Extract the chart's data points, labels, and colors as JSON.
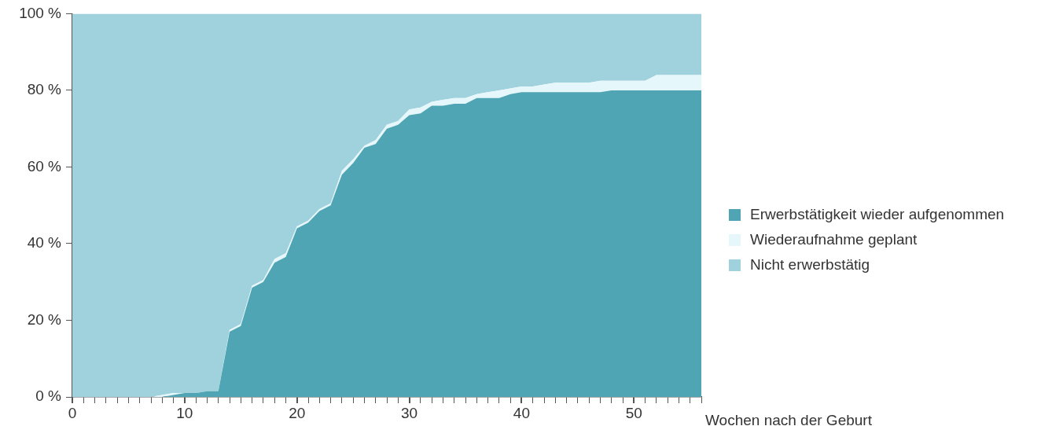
{
  "chart_data": {
    "type": "area",
    "xlabel": "Wochen nach der Geburt",
    "stacked": true,
    "legend": "right",
    "marker": "none",
    "x": [
      0,
      1,
      2,
      3,
      4,
      5,
      6,
      7,
      8,
      9,
      10,
      11,
      12,
      13,
      14,
      15,
      16,
      17,
      18,
      19,
      20,
      21,
      22,
      23,
      24,
      25,
      26,
      27,
      28,
      29,
      30,
      31,
      32,
      33,
      34,
      35,
      36,
      37,
      38,
      39,
      40,
      41,
      42,
      43,
      44,
      45,
      46,
      47,
      48,
      49,
      50,
      51,
      52,
      53,
      54,
      55,
      56
    ],
    "xlim": [
      0,
      56
    ],
    "xticks": [
      0,
      {
        "value": 1,
        "label": null
      },
      {
        "value": 2,
        "label": null
      },
      {
        "value": 3,
        "label": null
      },
      {
        "value": 4,
        "label": null
      },
      {
        "value": 5,
        "label": null
      },
      {
        "value": 6,
        "label": null
      },
      {
        "value": 7,
        "label": null
      },
      {
        "value": 8,
        "label": null
      },
      {
        "value": 9,
        "label": null
      },
      10,
      {
        "value": 11,
        "label": null
      },
      {
        "value": 12,
        "label": null
      },
      {
        "value": 13,
        "label": null
      },
      {
        "value": 14,
        "label": null
      },
      {
        "value": 15,
        "label": null
      },
      {
        "value": 16,
        "label": null
      },
      {
        "value": 17,
        "label": null
      },
      {
        "value": 18,
        "label": null
      },
      {
        "value": 19,
        "label": null
      },
      20,
      {
        "value": 21,
        "label": null
      },
      {
        "value": 22,
        "label": null
      },
      {
        "value": 23,
        "label": null
      },
      {
        "value": 24,
        "label": null
      },
      {
        "value": 25,
        "label": null
      },
      {
        "value": 26,
        "label": null
      },
      {
        "value": 27,
        "label": null
      },
      {
        "value": 28,
        "label": null
      },
      {
        "value": 29,
        "label": null
      },
      30,
      {
        "value": 31,
        "label": null
      },
      {
        "value": 32,
        "label": null
      },
      {
        "value": 33,
        "label": null
      },
      {
        "value": 34,
        "label": null
      },
      {
        "value": 35,
        "label": null
      },
      {
        "value": 36,
        "label": null
      },
      {
        "value": 37,
        "label": null
      },
      {
        "value": 38,
        "label": null
      },
      {
        "value": 39,
        "label": null
      },
      40,
      {
        "value": 41,
        "label": null
      },
      {
        "value": 42,
        "label": null
      },
      {
        "value": 43,
        "label": null
      },
      {
        "value": 44,
        "label": null
      },
      {
        "value": 45,
        "label": null
      },
      {
        "value": 46,
        "label": null
      },
      {
        "value": 47,
        "label": null
      },
      {
        "value": 48,
        "label": null
      },
      {
        "value": 49,
        "label": null
      },
      50,
      {
        "value": 51,
        "label": null
      },
      {
        "value": 52,
        "label": null
      },
      {
        "value": 53,
        "label": null
      },
      {
        "value": 54,
        "label": null
      },
      {
        "value": 55,
        "label": null
      },
      {
        "value": 56,
        "label": null
      }
    ],
    "ylim": [
      0,
      100
    ],
    "yticks": [
      {
        "value": 0,
        "label": "0 %"
      },
      {
        "value": 20,
        "label": "20 %"
      },
      {
        "value": 40,
        "label": "40 %"
      },
      {
        "value": 60,
        "label": "60 %"
      },
      {
        "value": 80,
        "label": "80 %"
      },
      {
        "value": 100,
        "label": "100 %"
      }
    ],
    "series": [
      {
        "name": "Erwerbstätigkeit wieder aufgenommen",
        "color": "#4fa5b4",
        "values": [
          0,
          0,
          0,
          0,
          0,
          0,
          0,
          0,
          0,
          0.5,
          1,
          1,
          1.5,
          1.5,
          17,
          18.5,
          28.5,
          30,
          35,
          36.5,
          44,
          45.5,
          48.5,
          50,
          58,
          61,
          65,
          66,
          70,
          71,
          73.5,
          74,
          76,
          76,
          76.5,
          76.5,
          78,
          78,
          78,
          79,
          79.5,
          79.5,
          79.5,
          79.5,
          79.5,
          79.5,
          79.5,
          79.5,
          80,
          80,
          80,
          80,
          80,
          80,
          80,
          80,
          80
        ]
      },
      {
        "name": "Wiederaufnahme geplant",
        "color": "#e6f7fb",
        "values": [
          0,
          0,
          0,
          0,
          0,
          0,
          0,
          0,
          0.5,
          0.5,
          0,
          0,
          0,
          0,
          0.5,
          0.5,
          0.5,
          0.5,
          1,
          1,
          0.5,
          0.5,
          0.5,
          0.5,
          1,
          1,
          0.5,
          1,
          1,
          1,
          1.5,
          1.5,
          1,
          1.5,
          1.5,
          1.5,
          1,
          1.5,
          2,
          1.5,
          1.5,
          1.5,
          2,
          2.5,
          2.5,
          2.5,
          2.5,
          3,
          2.5,
          2.5,
          2.5,
          2.5,
          4,
          4,
          4,
          4,
          4
        ]
      },
      {
        "name": "Nicht erwerbstätig",
        "color": "#9fd2dd",
        "values": [
          100,
          100,
          100,
          100,
          100,
          100,
          100,
          100,
          99.5,
          99,
          99,
          99,
          98.5,
          98.5,
          82.5,
          81,
          71,
          69.5,
          64,
          62.5,
          55.5,
          54,
          51,
          49.5,
          41,
          38,
          34.5,
          33,
          29,
          28,
          25,
          24.5,
          23,
          22.5,
          22,
          22,
          21,
          20.5,
          20,
          19.5,
          19,
          19,
          18.5,
          18,
          18,
          18,
          18,
          17.5,
          17.5,
          17.5,
          17.5,
          17.5,
          16,
          16,
          16,
          16,
          16
        ]
      }
    ]
  }
}
